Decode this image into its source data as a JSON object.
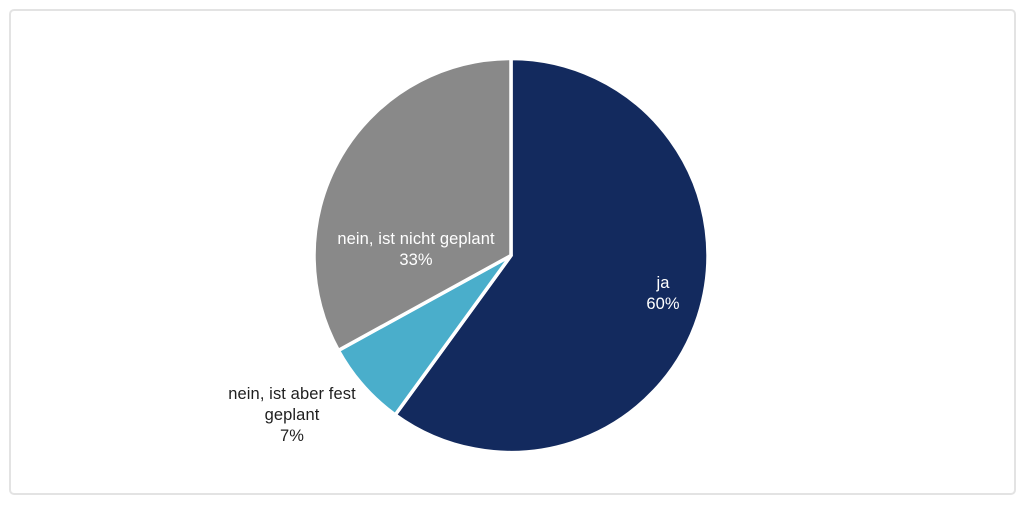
{
  "chart_data": {
    "type": "pie",
    "title": "",
    "labels": [
      "ja",
      "nein, ist aber fest geplant",
      "nein, ist nicht geplant"
    ],
    "values": [
      60,
      7,
      33
    ],
    "pct_labels": [
      "60%",
      "7%",
      "33%"
    ],
    "colors": [
      "#132a5e",
      "#4aaecb",
      "#898989"
    ],
    "slice_ids": [
      "ja",
      "nein-aber-fest-geplant",
      "nein-nicht-geplant"
    ],
    "label_colors": [
      "#ffffff",
      "#1f1f1f",
      "#ffffff"
    ],
    "label_placement": [
      "inside",
      "outside",
      "inside"
    ],
    "start_angle_deg": 0,
    "direction": "clockwise",
    "slice_border_color": "#ffffff",
    "legend": "none",
    "background": "#ffffff",
    "frame_border_color": "#e3e3e3"
  }
}
